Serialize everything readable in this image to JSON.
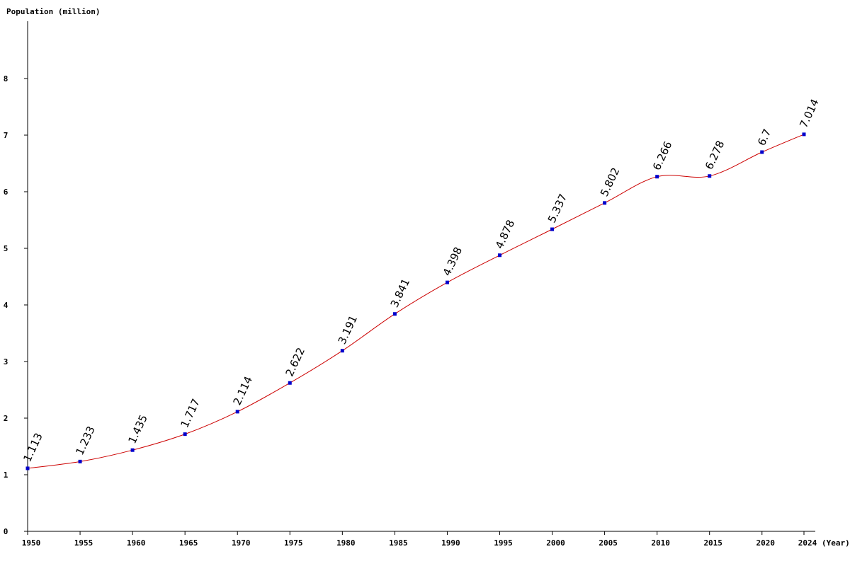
{
  "chart_data": {
    "type": "line",
    "ylabel": "Population (million)",
    "xlabel": "(Year)",
    "ylim": [
      0,
      9
    ],
    "xlim": [
      1950,
      2024
    ],
    "yticks": [
      0,
      1,
      2,
      3,
      4,
      5,
      6,
      7,
      8
    ],
    "xticks": [
      1950,
      1955,
      1960,
      1965,
      1970,
      1975,
      1980,
      1985,
      1990,
      1995,
      2000,
      2005,
      2010,
      2015,
      2020,
      2024
    ],
    "grid": false,
    "legend": "none",
    "series": [
      {
        "x": [
          1950,
          1955,
          1960,
          1965,
          1970,
          1975,
          1980,
          1985,
          1990,
          1995,
          2000,
          2005,
          2010,
          2015,
          2020,
          2024
        ],
        "values": [
          1.113,
          1.233,
          1.435,
          1.717,
          2.114,
          2.622,
          3.191,
          3.841,
          4.398,
          4.878,
          5.337,
          5.802,
          6.266,
          6.278,
          6.7,
          7.014
        ],
        "labels": [
          "1.113",
          "1.233",
          "1.435",
          "1.717",
          "2.114",
          "2.622",
          "3.191",
          "3.841",
          "4.398",
          "4.878",
          "5.337",
          "5.802",
          "6.266",
          "6.278",
          "6.7",
          "7.014"
        ],
        "line_color": "#cc0000",
        "marker_color": "#0000cc"
      }
    ]
  }
}
